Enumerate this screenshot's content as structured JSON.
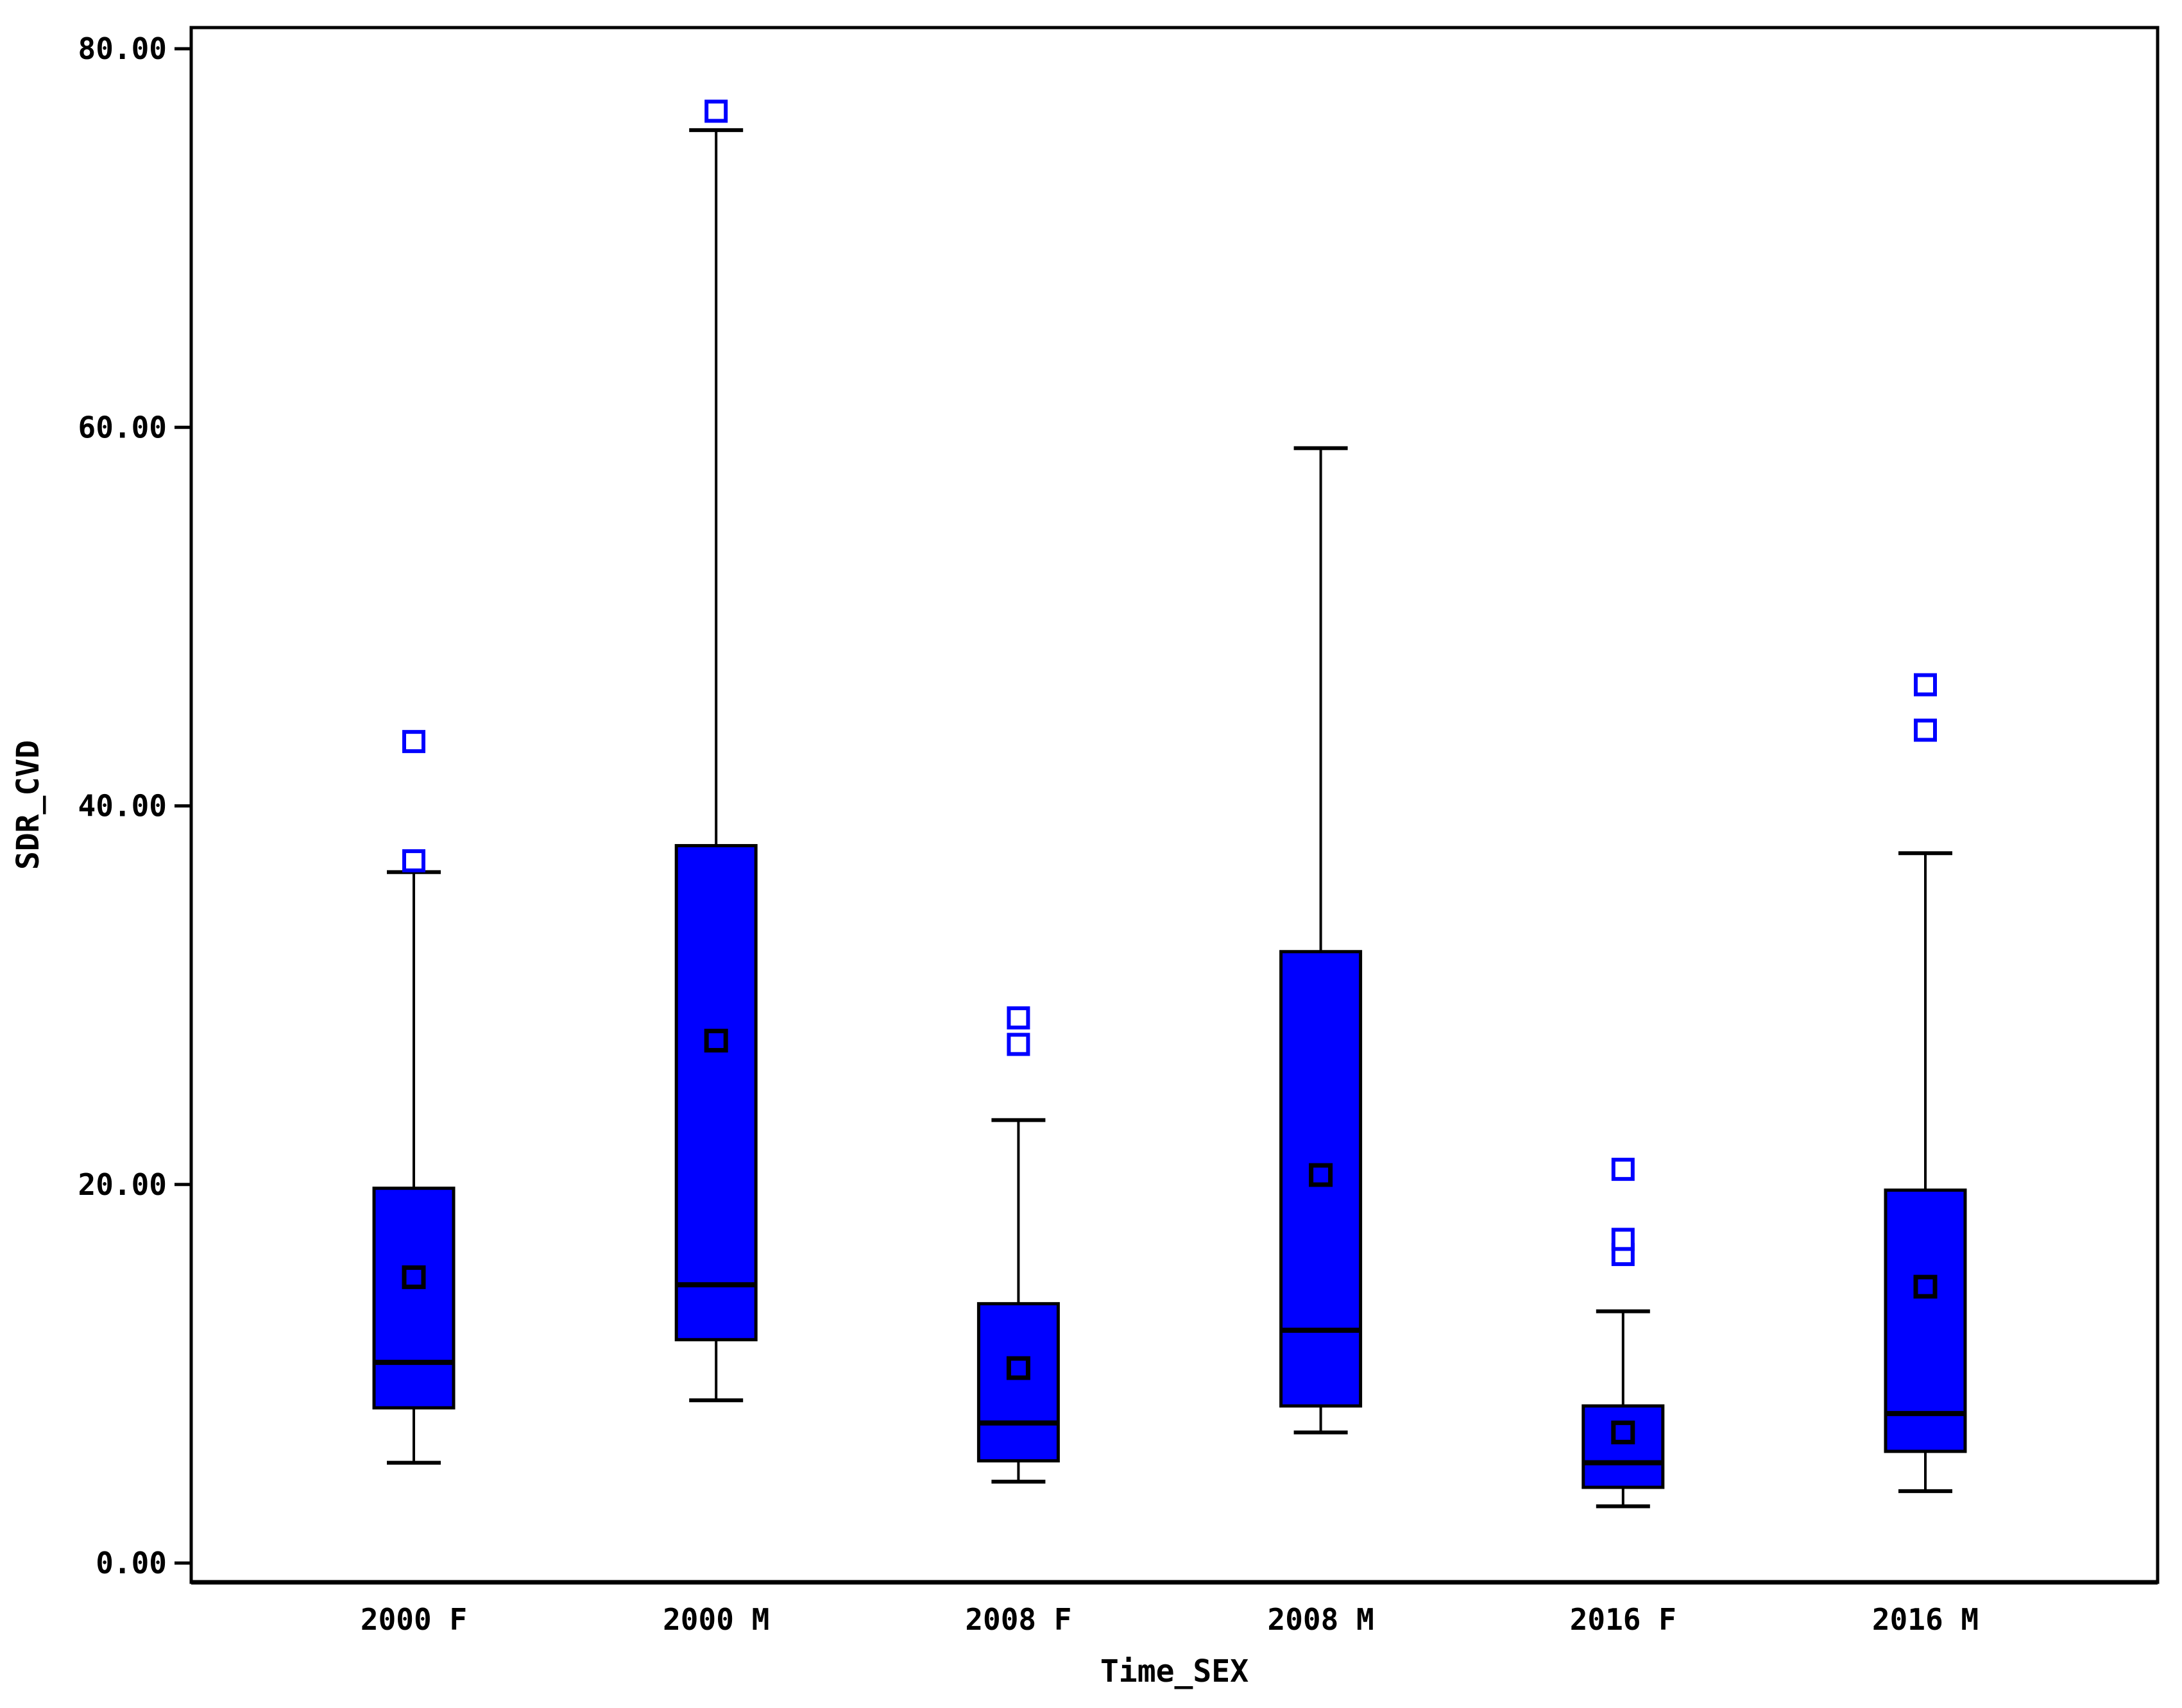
{
  "chart_data": {
    "type": "box",
    "title": "",
    "xlabel": "Time_SEX",
    "ylabel": "SDR_CVD",
    "ylim": [
      0,
      80
    ],
    "grid": false,
    "legend": "none",
    "yticks": [
      {
        "value": 0,
        "label": "0.00"
      },
      {
        "value": 20,
        "label": "20.00"
      },
      {
        "value": 40,
        "label": "40.00"
      },
      {
        "value": 60,
        "label": "60.00"
      },
      {
        "value": 80,
        "label": "80.00"
      }
    ],
    "categories": [
      "2000 F",
      "2000 M",
      "2008 F",
      "2008 M",
      "2016 F",
      "2016 M"
    ],
    "boxes": [
      {
        "category": "2000 F",
        "whisker_low": 5.3,
        "q1": 8.2,
        "median": 10.6,
        "q3": 19.8,
        "whisker_high": 36.5,
        "mean": 15.1,
        "outliers": [
          37.1,
          43.4
        ]
      },
      {
        "category": "2000 M",
        "whisker_low": 8.6,
        "q1": 11.8,
        "median": 14.7,
        "q3": 37.9,
        "whisker_high": 75.7,
        "mean": 27.6,
        "outliers": [
          76.7
        ]
      },
      {
        "category": "2008 F",
        "whisker_low": 4.3,
        "q1": 5.4,
        "median": 7.4,
        "q3": 13.7,
        "whisker_high": 23.4,
        "mean": 10.3,
        "outliers": [
          27.4,
          28.8
        ]
      },
      {
        "category": "2008 M",
        "whisker_low": 6.9,
        "q1": 8.3,
        "median": 12.3,
        "q3": 32.3,
        "whisker_high": 58.9,
        "mean": 20.5,
        "outliers": []
      },
      {
        "category": "2016 F",
        "whisker_low": 3.0,
        "q1": 4.0,
        "median": 5.3,
        "q3": 8.3,
        "whisker_high": 13.3,
        "mean": 6.9,
        "outliers": [
          16.3,
          17.1,
          20.8
        ]
      },
      {
        "category": "2016 M",
        "whisker_low": 3.8,
        "q1": 5.9,
        "median": 7.9,
        "q3": 19.7,
        "whisker_high": 37.5,
        "mean": 14.6,
        "outliers": [
          44.0,
          46.4
        ]
      }
    ],
    "colors": {
      "box_fill": "#0000ff",
      "box_border": "#000000",
      "whisker": "#000000",
      "median": "#000000",
      "mean_marker": "#000000",
      "outlier": "#0000ff",
      "axis": "#000000",
      "background": "#ffffff"
    }
  }
}
